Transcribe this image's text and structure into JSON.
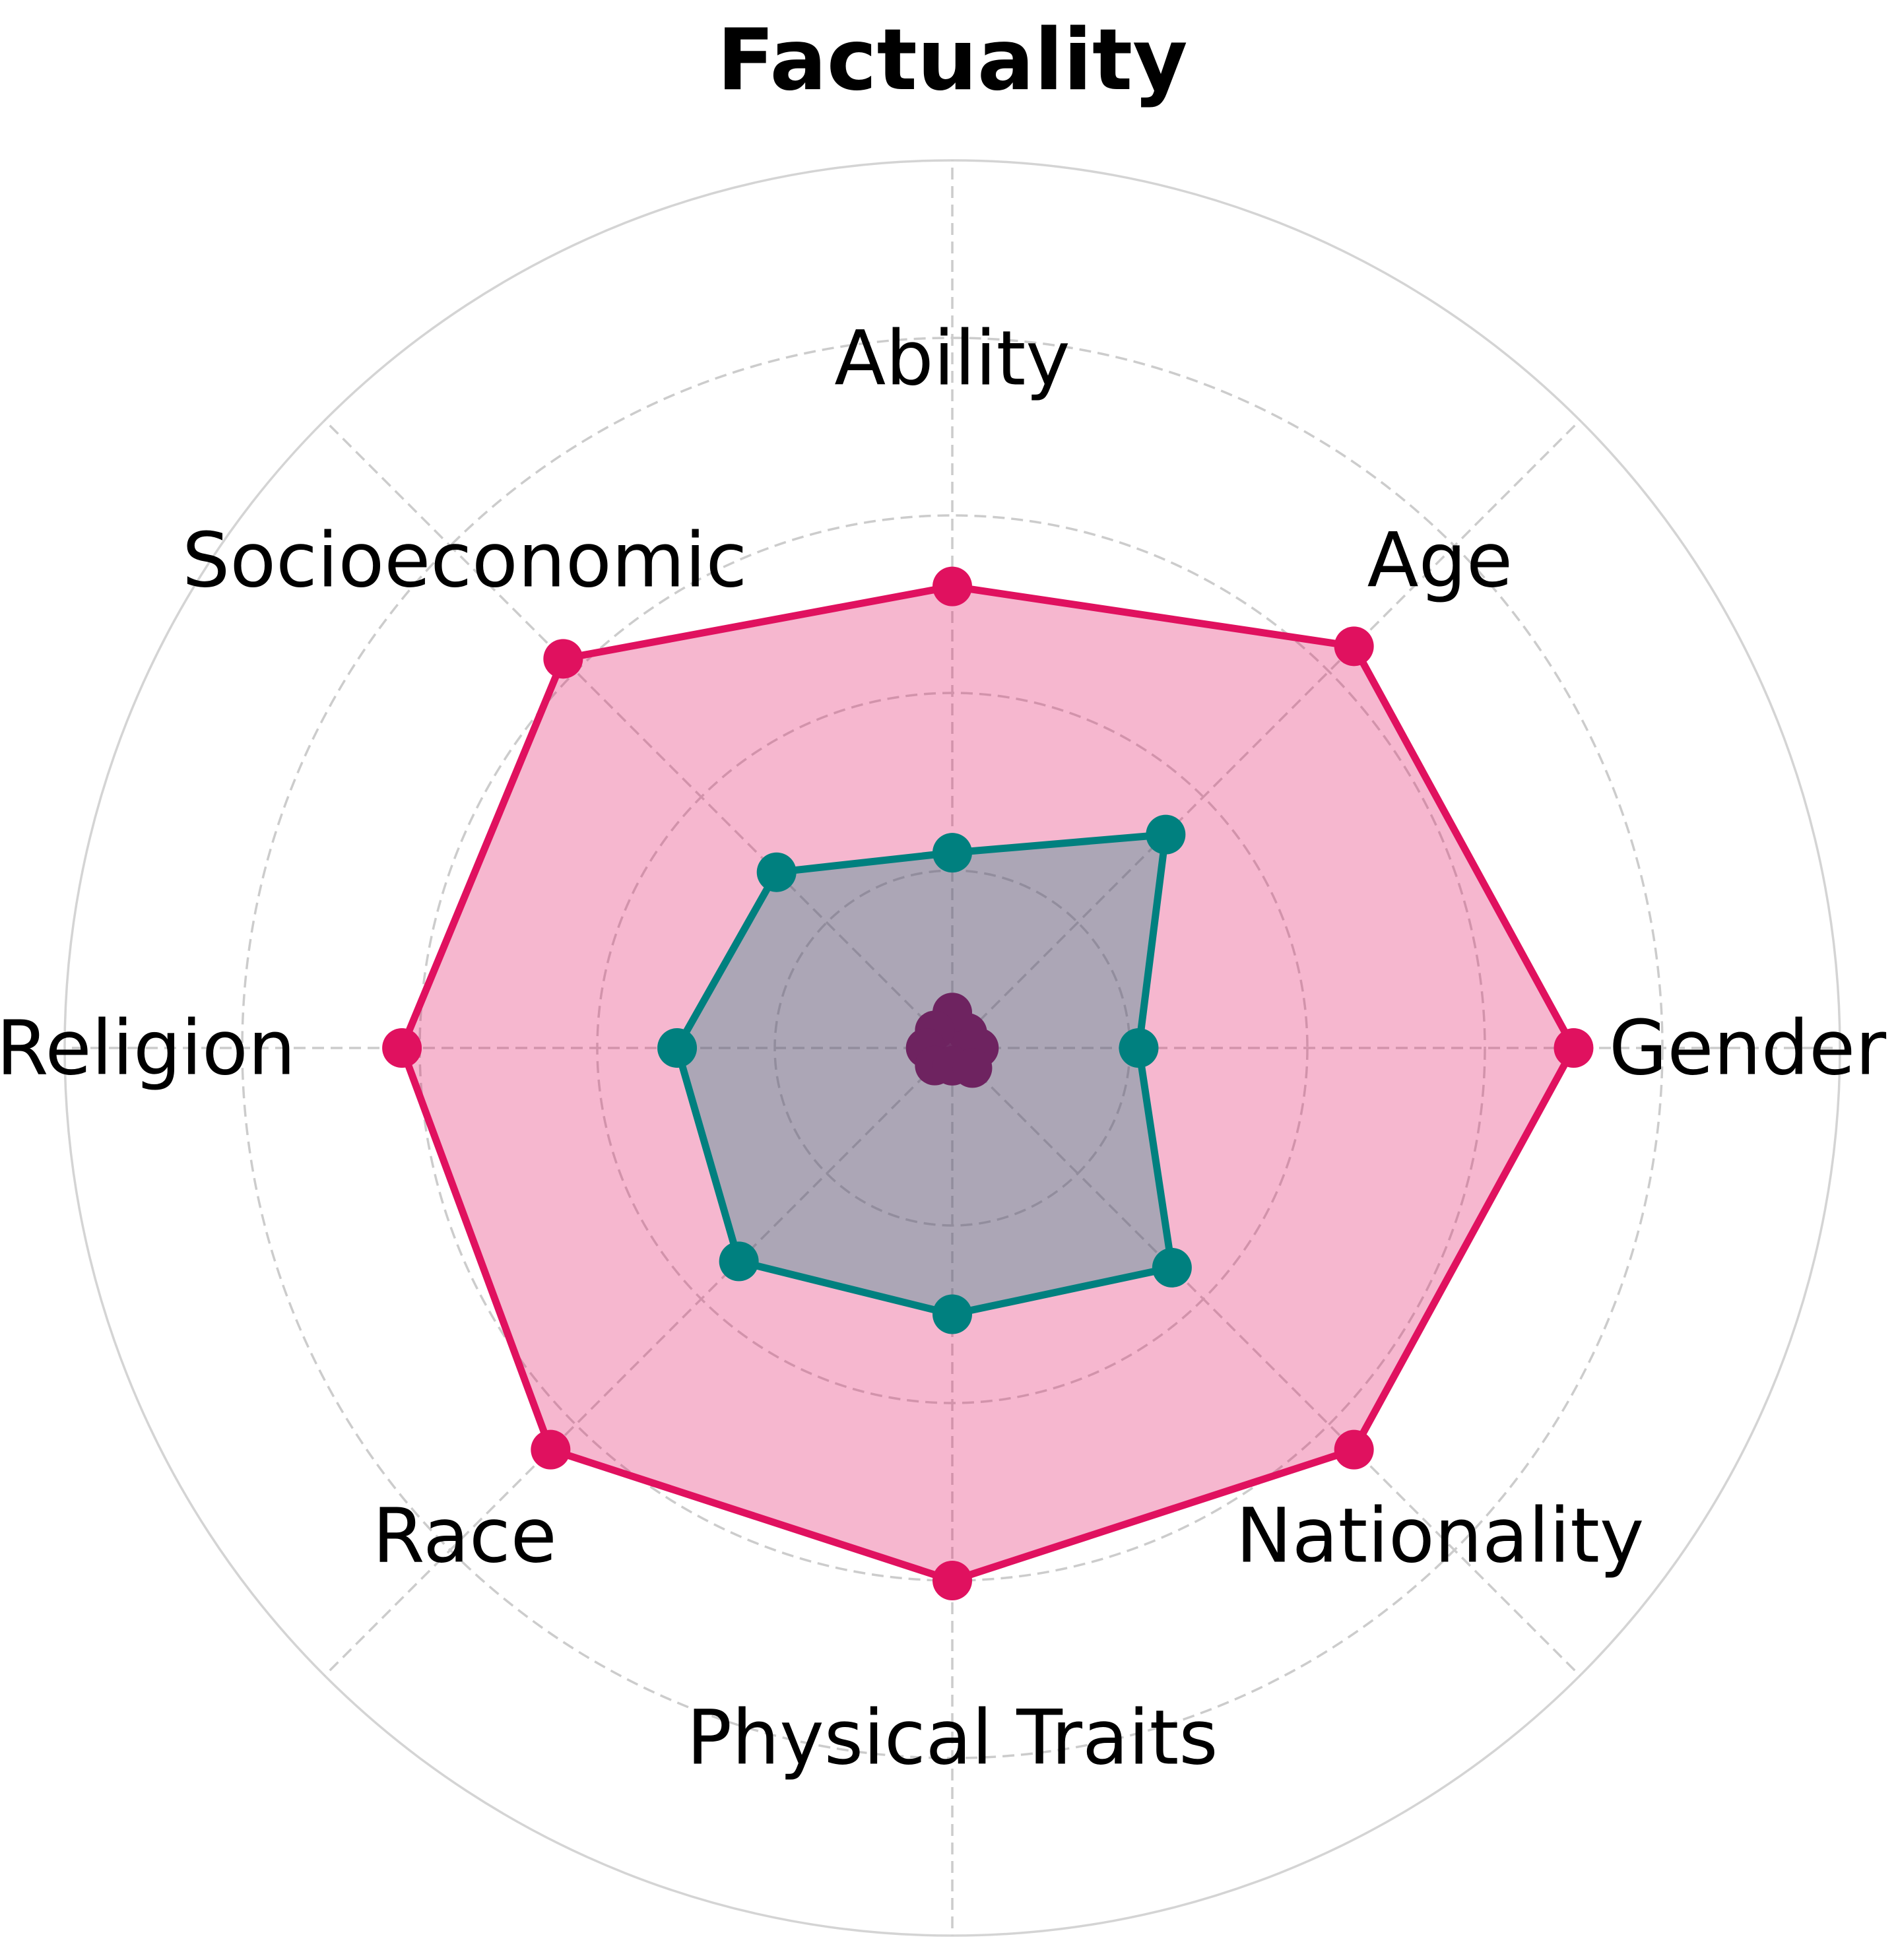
{
  "chart_data": {
    "type": "radar",
    "title": "Factuality",
    "categories": [
      "Gender",
      "Age",
      "Ability",
      "Socioeconomic",
      "Religion",
      "Race",
      "Physical Traits",
      "Nationality"
    ],
    "rmax": 5,
    "rings": [
      1,
      2,
      3,
      4,
      5
    ],
    "grid": true,
    "legend": "none",
    "series": [
      {
        "color": "#e0115f",
        "fill_opacity": 0.3,
        "values": [
          3.5,
          3.2,
          2.6,
          3.1,
          3.1,
          3.2,
          3.0,
          3.2
        ]
      },
      {
        "color": "#00807f",
        "fill_opacity": 0.3,
        "values": [
          1.05,
          1.7,
          1.1,
          1.4,
          1.55,
          1.7,
          1.5,
          1.75
        ]
      },
      {
        "color": "#6e2360",
        "fill_opacity": 0.9,
        "values": [
          0.15,
          0.12,
          0.2,
          0.14,
          0.15,
          0.14,
          0.1,
          0.16
        ]
      }
    ]
  }
}
